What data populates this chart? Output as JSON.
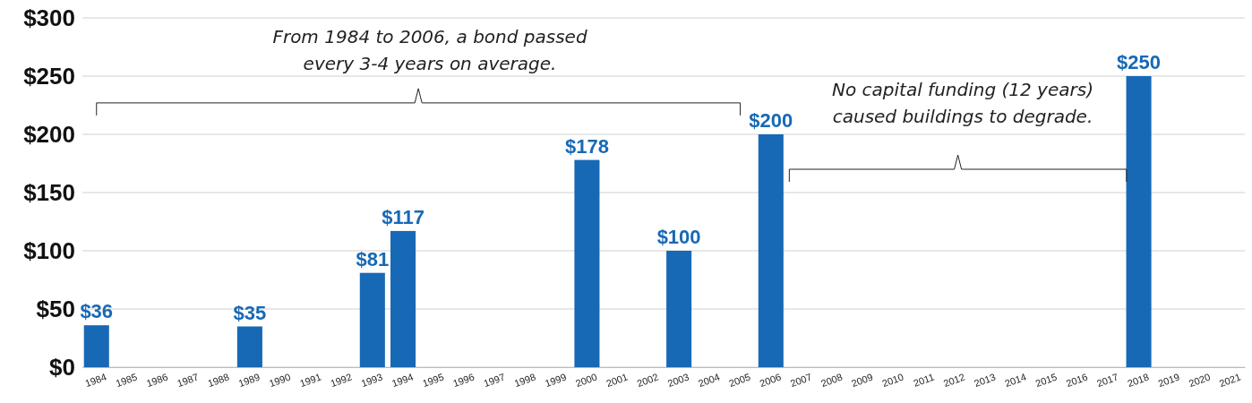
{
  "chart_data": {
    "type": "bar",
    "categories": [
      "1984",
      "1985",
      "1986",
      "1987",
      "1988",
      "1989",
      "1990",
      "1991",
      "1992",
      "1993",
      "1994",
      "1995",
      "1996",
      "1997",
      "1998",
      "1999",
      "2000",
      "2001",
      "2002",
      "2003",
      "2004",
      "2005",
      "2006",
      "2007",
      "2008",
      "2009",
      "2010",
      "2011",
      "2012",
      "2013",
      "2014",
      "2015",
      "2016",
      "2017",
      "2018",
      "2019",
      "2020",
      "2021"
    ],
    "values": [
      36,
      null,
      null,
      null,
      null,
      35,
      null,
      null,
      null,
      81,
      117,
      null,
      null,
      null,
      null,
      null,
      178,
      null,
      null,
      100,
      null,
      null,
      200,
      null,
      null,
      null,
      null,
      null,
      null,
      null,
      null,
      null,
      null,
      null,
      250,
      null,
      null,
      null
    ],
    "value_labels": [
      "$36",
      null,
      null,
      null,
      null,
      "$35",
      null,
      null,
      null,
      "$81",
      "$117",
      null,
      null,
      null,
      null,
      null,
      "$178",
      null,
      null,
      "$100",
      null,
      null,
      "$200",
      null,
      null,
      null,
      null,
      null,
      null,
      null,
      null,
      null,
      null,
      null,
      "$250",
      null,
      null,
      null
    ],
    "color": "#1769b5",
    "ylim": [
      0,
      300
    ],
    "yticks": [
      {
        "value": 0,
        "label": "$0"
      },
      {
        "value": 50,
        "label": "$50"
      },
      {
        "value": 100,
        "label": "$100"
      },
      {
        "value": 150,
        "label": "$150"
      },
      {
        "value": 200,
        "label": "$200"
      },
      {
        "value": 250,
        "label": "$250"
      },
      {
        "value": 300,
        "label": "$300"
      }
    ],
    "grid": "y",
    "annotations": [
      "From 1984 to 2006, a bond passed every 3-4 years on average.",
      "No capital funding (12 years) caused buildings to degrade."
    ]
  }
}
